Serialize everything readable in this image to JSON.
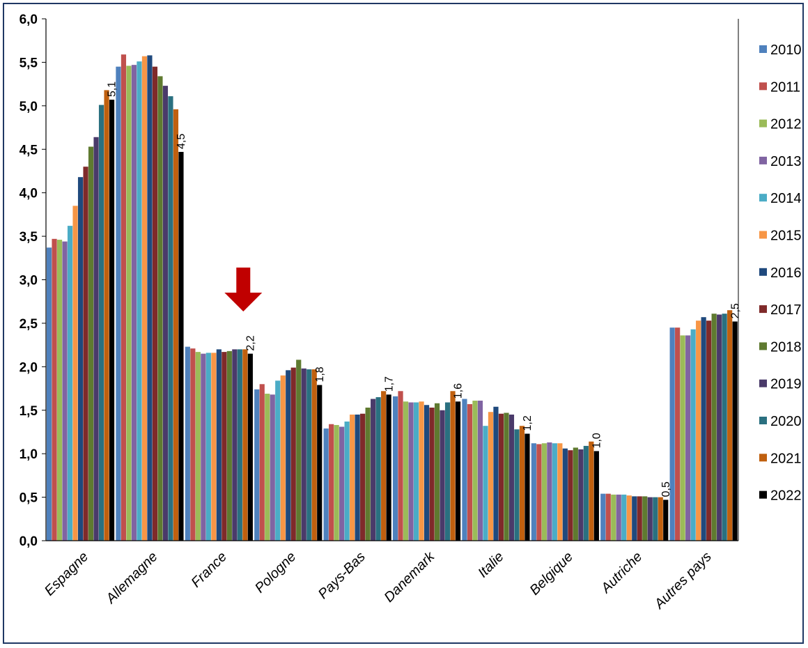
{
  "chart_data": {
    "type": "bar",
    "title": "",
    "xlabel": "",
    "ylabel": "",
    "ylim": [
      0,
      6
    ],
    "y_ticks": [
      "0,0",
      "0,5",
      "1,0",
      "1,5",
      "2,0",
      "2,5",
      "3,0",
      "3,5",
      "4,0",
      "4,5",
      "5,0",
      "5,5",
      "6,0"
    ],
    "grid": false,
    "legend_position": "right",
    "categories": [
      "Espagne",
      "Allemagne",
      "France",
      "Pologne",
      "Pays-Bas",
      "Danemark",
      "Italie",
      "Belgique",
      "Autriche",
      "Autres pays"
    ],
    "series": [
      {
        "name": "2010",
        "color": "#4f81bd",
        "values": [
          3.37,
          5.45,
          2.23,
          1.74,
          1.29,
          1.66,
          1.63,
          1.12,
          0.54,
          2.45
        ]
      },
      {
        "name": "2011",
        "color": "#c0504d",
        "values": [
          3.47,
          5.59,
          2.21,
          1.8,
          1.34,
          1.72,
          1.57,
          1.11,
          0.54,
          2.45
        ]
      },
      {
        "name": "2012",
        "color": "#9bbb59",
        "values": [
          3.46,
          5.46,
          2.17,
          1.69,
          1.33,
          1.6,
          1.61,
          1.12,
          0.53,
          2.36
        ]
      },
      {
        "name": "2013",
        "color": "#8064a2",
        "values": [
          3.44,
          5.47,
          2.15,
          1.68,
          1.31,
          1.59,
          1.61,
          1.13,
          0.53,
          2.36
        ]
      },
      {
        "name": "2014",
        "color": "#4bacc6",
        "values": [
          3.62,
          5.51,
          2.16,
          1.84,
          1.37,
          1.59,
          1.32,
          1.12,
          0.53,
          2.43
        ]
      },
      {
        "name": "2015",
        "color": "#f79646",
        "values": [
          3.85,
          5.57,
          2.16,
          1.9,
          1.45,
          1.6,
          1.48,
          1.12,
          0.52,
          2.53
        ]
      },
      {
        "name": "2016",
        "color": "#1f497d",
        "values": [
          4.18,
          5.58,
          2.2,
          1.96,
          1.45,
          1.56,
          1.54,
          1.06,
          0.51,
          2.57
        ]
      },
      {
        "name": "2017",
        "color": "#7f2a2a",
        "values": [
          4.3,
          5.45,
          2.17,
          1.99,
          1.46,
          1.53,
          1.46,
          1.04,
          0.51,
          2.53
        ]
      },
      {
        "name": "2018",
        "color": "#5f7a30",
        "values": [
          4.53,
          5.34,
          2.18,
          2.08,
          1.53,
          1.58,
          1.47,
          1.07,
          0.51,
          2.61
        ]
      },
      {
        "name": "2019",
        "color": "#4a3a6a",
        "values": [
          4.64,
          5.23,
          2.2,
          1.98,
          1.63,
          1.5,
          1.45,
          1.05,
          0.5,
          2.6
        ]
      },
      {
        "name": "2020",
        "color": "#2a7080",
        "values": [
          5.01,
          5.11,
          2.2,
          1.97,
          1.65,
          1.59,
          1.28,
          1.09,
          0.5,
          2.61
        ]
      },
      {
        "name": "2021",
        "color": "#c0600f",
        "values": [
          5.18,
          4.96,
          2.2,
          1.97,
          1.72,
          1.72,
          1.32,
          1.14,
          0.5,
          2.65
        ]
      },
      {
        "name": "2022",
        "color": "#000000",
        "values": [
          5.07,
          4.47,
          2.15,
          1.79,
          1.68,
          1.6,
          1.23,
          1.03,
          0.47,
          2.52
        ]
      }
    ],
    "data_labels": [
      "5,1",
      "4,5",
      "2,2",
      "1,8",
      "1,7",
      "1,6",
      "1,2",
      "1,0",
      "0,5",
      "2,5"
    ],
    "annotation": {
      "type": "arrow-down",
      "color": "#c00000",
      "target": "France"
    }
  }
}
